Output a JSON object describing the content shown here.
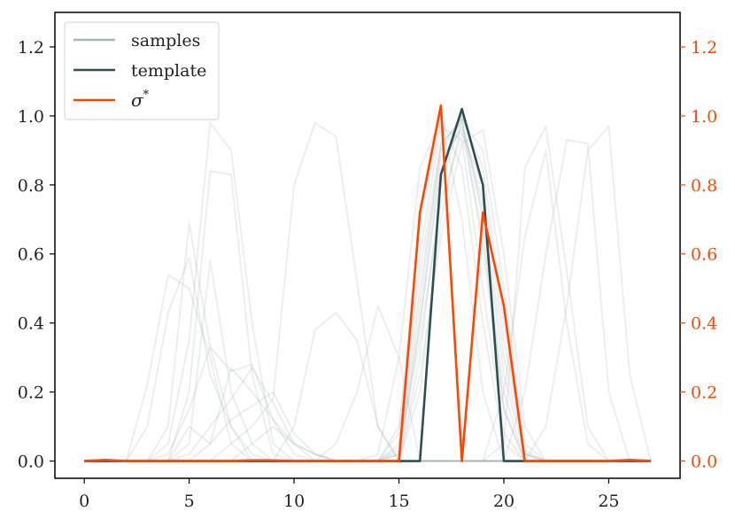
{
  "chart_data": {
    "type": "line",
    "x": [
      0,
      1,
      2,
      3,
      4,
      5,
      6,
      7,
      8,
      9,
      10,
      11,
      12,
      13,
      14,
      15,
      16,
      17,
      18,
      19,
      20,
      21,
      22,
      23,
      24,
      25,
      26,
      27
    ],
    "xlim": [
      -1.4,
      28.4
    ],
    "ylim": [
      -0.05,
      1.3
    ],
    "ylim_right": [
      -0.05,
      1.3
    ],
    "xticks": [
      0,
      5,
      10,
      15,
      20,
      25
    ],
    "xtick_labels": [
      "0",
      "5",
      "10",
      "15",
      "20",
      "25"
    ],
    "yticks": [
      0.0,
      0.2,
      0.4,
      0.6,
      0.8,
      1.0,
      1.2
    ],
    "ytick_labels": [
      "0.0",
      "0.2",
      "0.4",
      "0.6",
      "0.8",
      "1.0",
      "1.2"
    ],
    "ytick_labels_right": [
      "0.0",
      "0.2",
      "0.4",
      "0.6",
      "0.8",
      "1.0",
      "1.2"
    ],
    "grid": false,
    "legend_position": "top-left",
    "colors": {
      "samples": "#a9b8b6",
      "template": "#2f4f4f",
      "sigma": "#ff4500",
      "right_axis_text": "#ff4500"
    },
    "series": [
      {
        "name": "samples",
        "role": "samples",
        "values_list": [
          [
            0,
            0,
            0,
            0,
            0,
            0,
            0,
            0,
            0,
            0,
            0,
            0,
            0,
            0,
            0,
            0.02,
            0.45,
            0.92,
            0.99,
            0.62,
            0.15,
            0,
            0,
            0,
            0,
            0,
            0,
            0
          ],
          [
            0,
            0,
            0,
            0,
            0,
            0,
            0,
            0,
            0,
            0,
            0,
            0,
            0,
            0,
            0,
            0,
            0.3,
            0.8,
            1.0,
            0.85,
            0.4,
            0.02,
            0,
            0,
            0,
            0,
            0,
            0
          ],
          [
            0,
            0,
            0,
            0,
            0,
            0,
            0,
            0,
            0,
            0,
            0,
            0,
            0,
            0,
            0,
            0.05,
            0.6,
            0.97,
            0.93,
            0.5,
            0.08,
            0,
            0,
            0,
            0,
            0,
            0,
            0
          ],
          [
            0,
            0,
            0,
            0,
            0,
            0,
            0,
            0,
            0,
            0,
            0,
            0,
            0,
            0,
            0,
            0,
            0.2,
            0.7,
            0.99,
            0.9,
            0.5,
            0.05,
            0,
            0,
            0,
            0,
            0,
            0
          ],
          [
            0,
            0,
            0,
            0,
            0,
            0,
            0,
            0,
            0,
            0,
            0,
            0,
            0,
            0,
            0.02,
            0.3,
            0.85,
            0.99,
            0.7,
            0.2,
            0,
            0,
            0,
            0,
            0,
            0,
            0,
            0
          ],
          [
            0,
            0,
            0,
            0,
            0,
            0,
            0,
            0,
            0,
            0,
            0,
            0,
            0,
            0,
            0,
            0.1,
            0.55,
            0.92,
            0.98,
            0.72,
            0.25,
            0.02,
            0,
            0,
            0,
            0,
            0,
            0
          ],
          [
            0,
            0,
            0,
            0,
            0,
            0,
            0,
            0,
            0,
            0,
            0,
            0,
            0,
            0,
            0,
            0,
            0.4,
            0.88,
            0.96,
            0.65,
            0.2,
            0,
            0,
            0,
            0,
            0,
            0,
            0
          ],
          [
            0,
            0,
            0,
            0,
            0,
            0,
            0,
            0,
            0,
            0,
            0,
            0,
            0,
            0,
            0,
            0.03,
            0.35,
            0.75,
            0.95,
            0.8,
            0.35,
            0.03,
            0,
            0,
            0,
            0,
            0,
            0
          ],
          [
            0,
            0,
            0,
            0,
            0,
            0,
            0,
            0,
            0,
            0,
            0,
            0,
            0,
            0,
            0,
            0.08,
            0.7,
            0.99,
            0.85,
            0.4,
            0.05,
            0,
            0,
            0,
            0,
            0,
            0,
            0
          ],
          [
            0,
            0,
            0,
            0,
            0,
            0,
            0,
            0,
            0,
            0,
            0,
            0,
            0,
            0,
            0,
            0,
            0.25,
            0.65,
            0.92,
            0.96,
            0.6,
            0.1,
            0,
            0,
            0,
            0,
            0,
            0
          ],
          [
            0,
            0,
            0,
            0,
            0,
            0,
            0,
            0,
            0,
            0,
            0,
            0,
            0,
            0,
            0,
            0.04,
            0.5,
            0.9,
            1.0,
            0.7,
            0.15,
            0,
            0,
            0,
            0,
            0,
            0,
            0
          ],
          [
            0,
            0,
            0,
            0,
            0,
            0,
            0,
            0,
            0,
            0,
            0,
            0,
            0,
            0,
            0,
            0.02,
            0.4,
            0.85,
            0.97,
            0.75,
            0.3,
            0.02,
            0,
            0,
            0,
            0,
            0,
            0
          ],
          [
            0,
            0,
            0,
            0,
            0.05,
            0.35,
            0.98,
            0.9,
            0.4,
            0.05,
            0,
            0,
            0,
            0,
            0,
            0,
            0,
            0,
            0,
            0,
            0,
            0,
            0,
            0,
            0,
            0,
            0,
            0
          ],
          [
            0,
            0,
            0,
            0.22,
            0.54,
            0.5,
            0.3,
            0.05,
            0,
            0,
            0,
            0,
            0,
            0,
            0,
            0,
            0,
            0,
            0,
            0,
            0,
            0,
            0,
            0,
            0,
            0,
            0,
            0
          ],
          [
            0,
            0,
            0,
            0,
            0.1,
            0.69,
            0.33,
            0.1,
            0,
            0,
            0,
            0,
            0,
            0,
            0,
            0,
            0,
            0,
            0,
            0,
            0,
            0,
            0,
            0,
            0,
            0,
            0,
            0
          ],
          [
            0,
            0,
            0,
            0,
            0,
            0.2,
            0.84,
            0.83,
            0.25,
            0.02,
            0,
            0,
            0,
            0,
            0,
            0,
            0,
            0,
            0,
            0,
            0,
            0,
            0,
            0,
            0,
            0,
            0,
            0
          ],
          [
            0,
            0,
            0,
            0.1,
            0.43,
            0.59,
            0.25,
            0.1,
            0.02,
            0,
            0,
            0,
            0,
            0,
            0,
            0,
            0,
            0,
            0,
            0,
            0,
            0,
            0,
            0,
            0,
            0,
            0,
            0
          ],
          [
            0,
            0,
            0,
            0,
            0,
            0.05,
            0.58,
            0.2,
            0.05,
            0,
            0,
            0,
            0,
            0,
            0,
            0,
            0,
            0,
            0,
            0,
            0,
            0,
            0,
            0,
            0,
            0,
            0,
            0
          ],
          [
            0,
            0,
            0,
            0,
            0.02,
            0.15,
            0.33,
            0.26,
            0.28,
            0.12,
            0.02,
            0,
            0,
            0,
            0,
            0,
            0,
            0,
            0,
            0,
            0,
            0,
            0,
            0,
            0,
            0,
            0,
            0
          ],
          [
            0,
            0,
            0,
            0,
            0,
            0.1,
            0.05,
            0.27,
            0.2,
            0.12,
            0.05,
            0,
            0,
            0,
            0,
            0,
            0,
            0,
            0,
            0,
            0,
            0,
            0,
            0,
            0,
            0,
            0,
            0
          ],
          [
            0,
            0,
            0,
            0,
            0,
            0.02,
            0.1,
            0.18,
            0.27,
            0.17,
            0.05,
            0.02,
            0,
            0,
            0,
            0,
            0,
            0,
            0,
            0,
            0,
            0,
            0,
            0,
            0,
            0,
            0,
            0
          ],
          [
            0,
            0,
            0,
            0,
            0,
            0,
            0.05,
            0.12,
            0.16,
            0.2,
            0.08,
            0.02,
            0,
            0,
            0,
            0,
            0,
            0,
            0,
            0,
            0,
            0,
            0,
            0,
            0,
            0,
            0,
            0
          ],
          [
            0,
            0,
            0,
            0,
            0,
            0,
            0,
            0.05,
            0.1,
            0.18,
            0.8,
            0.98,
            0.94,
            0.52,
            0.1,
            0,
            0,
            0,
            0,
            0,
            0,
            0,
            0,
            0,
            0,
            0,
            0,
            0
          ],
          [
            0,
            0,
            0,
            0,
            0,
            0,
            0,
            0,
            0,
            0,
            0.1,
            0.38,
            0.43,
            0.35,
            0.1,
            0,
            0,
            0,
            0,
            0,
            0,
            0,
            0,
            0,
            0,
            0,
            0,
            0
          ],
          [
            0,
            0,
            0,
            0,
            0,
            0,
            0,
            0,
            0,
            0,
            0,
            0,
            0.05,
            0.2,
            0.45,
            0.3,
            0,
            0,
            0,
            0,
            0,
            0,
            0,
            0,
            0,
            0,
            0,
            0
          ],
          [
            0,
            0,
            0,
            0,
            0,
            0,
            0,
            0,
            0.05,
            0.1,
            0.05,
            0.02,
            0,
            0,
            0,
            0,
            0,
            0,
            0,
            0,
            0,
            0,
            0,
            0,
            0,
            0,
            0,
            0
          ],
          [
            0,
            0,
            0,
            0,
            0,
            0,
            0,
            0,
            0,
            0,
            0,
            0,
            0,
            0,
            0,
            0,
            0,
            0,
            0,
            0,
            0.05,
            0.85,
            0.97,
            0.55,
            0.1,
            0,
            0,
            0
          ],
          [
            0,
            0,
            0,
            0,
            0,
            0,
            0,
            0,
            0,
            0,
            0,
            0,
            0,
            0,
            0,
            0,
            0,
            0,
            0,
            0,
            0,
            0.2,
            0.6,
            0.93,
            0.92,
            0.2,
            0,
            0
          ],
          [
            0,
            0,
            0,
            0,
            0,
            0,
            0,
            0,
            0,
            0,
            0,
            0,
            0,
            0,
            0,
            0,
            0,
            0,
            0,
            0,
            0,
            0,
            0.1,
            0.45,
            0.9,
            0.97,
            0.25,
            0
          ],
          [
            0,
            0,
            0,
            0,
            0,
            0,
            0,
            0,
            0,
            0,
            0,
            0,
            0,
            0,
            0,
            0,
            0,
            0,
            0,
            0,
            0.2,
            0.65,
            0.9,
            0.4,
            0.05,
            0,
            0,
            0
          ]
        ]
      },
      {
        "name": "template",
        "role": "template",
        "values": [
          0,
          0,
          0,
          0,
          0,
          0,
          0,
          0,
          0,
          0,
          0,
          0,
          0,
          0,
          0,
          0,
          0,
          0.83,
          1.02,
          0.8,
          0,
          0,
          0,
          0,
          0,
          0,
          0,
          0
        ]
      },
      {
        "name": "σ*",
        "role": "sigma",
        "values": [
          0,
          0.003,
          0,
          0,
          0,
          0,
          0,
          0,
          0.002,
          0.002,
          0,
          0,
          0,
          0,
          0,
          0,
          0.72,
          1.03,
          0,
          0.72,
          0.45,
          0,
          0,
          0,
          0,
          0,
          0.003,
          0
        ]
      }
    ],
    "legend": [
      {
        "label": "samples",
        "role": "samples"
      },
      {
        "label": "template",
        "role": "template"
      },
      {
        "base": "σ",
        "sup": "*",
        "role": "sigma"
      }
    ]
  }
}
